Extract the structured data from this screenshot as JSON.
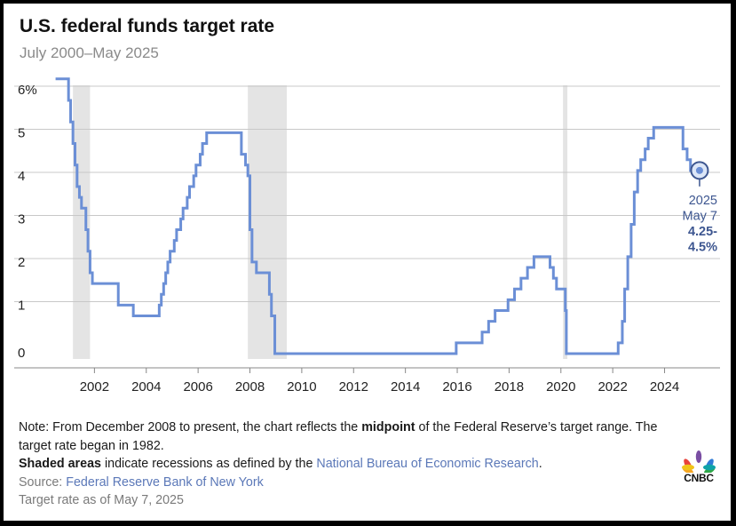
{
  "title": "U.S. federal funds target rate",
  "subtitle": "July 2000–May 2025",
  "colors": {
    "line": "#6b8fd6",
    "recession": "#e4e4e4",
    "grid": "#c8c8c8",
    "annotation_text": "#3d5690"
  },
  "chart_data": {
    "type": "line",
    "title": "U.S. federal funds target rate",
    "subtitle": "July 2000–May 2025",
    "xlabel": "",
    "ylabel": "",
    "xlim": [
      2000.0,
      2025.9
    ],
    "ylim": [
      0,
      6.5
    ],
    "y_ticks": [
      "6%",
      "5",
      "4",
      "3",
      "2",
      "1",
      "0"
    ],
    "y_tick_values": [
      6,
      5,
      4,
      3,
      2,
      1,
      0
    ],
    "x_ticks": [
      "2002",
      "2004",
      "2006",
      "2008",
      "2010",
      "2012",
      "2014",
      "2016",
      "2018",
      "2020",
      "2022",
      "2024"
    ],
    "x_tick_values": [
      2002,
      2004,
      2006,
      2008,
      2010,
      2012,
      2014,
      2016,
      2018,
      2020,
      2022,
      2024
    ],
    "grid": "horizontal",
    "recessions": [
      [
        2001.17,
        2001.83
      ],
      [
        2007.92,
        2009.42
      ],
      [
        2020.08,
        2020.25
      ]
    ],
    "series": [
      {
        "x": [
          2000.5,
          2001.0,
          2001.08,
          2001.17,
          2001.25,
          2001.33,
          2001.42,
          2001.5,
          2001.67,
          2001.75,
          2001.83,
          2001.92,
          2002.0,
          2002.92,
          2003.5,
          2004.5,
          2004.58,
          2004.67,
          2004.75,
          2004.83,
          2004.92,
          2005.08,
          2005.17,
          2005.33,
          2005.42,
          2005.58,
          2005.67,
          2005.83,
          2005.92,
          2006.08,
          2006.17,
          2006.33,
          2006.5,
          2007.67,
          2007.83,
          2007.92,
          2008.0,
          2008.08,
          2008.25,
          2008.33,
          2008.75,
          2008.83,
          2008.96,
          2015.96,
          2016.96,
          2017.21,
          2017.46,
          2017.96,
          2018.21,
          2018.46,
          2018.71,
          2018.96,
          2019.58,
          2019.71,
          2019.83,
          2020.17,
          2020.21,
          2022.21,
          2022.37,
          2022.46,
          2022.58,
          2022.71,
          2022.83,
          2022.96,
          2023.08,
          2023.25,
          2023.37,
          2023.58,
          2024.71,
          2024.87,
          2025.0,
          2025.35
        ],
        "values": [
          6.5,
          6.0,
          5.5,
          5.0,
          4.5,
          4.0,
          3.75,
          3.5,
          3.0,
          2.5,
          2.0,
          1.75,
          1.75,
          1.25,
          1.0,
          1.25,
          1.5,
          1.75,
          2.0,
          2.25,
          2.5,
          2.75,
          3.0,
          3.25,
          3.5,
          3.75,
          4.0,
          4.25,
          4.5,
          4.75,
          5.0,
          5.25,
          5.25,
          4.75,
          4.5,
          4.25,
          3.0,
          2.25,
          2.0,
          2.0,
          1.5,
          1.0,
          0.125,
          0.375,
          0.625,
          0.875,
          1.125,
          1.375,
          1.625,
          1.875,
          2.125,
          2.375,
          2.125,
          1.875,
          1.625,
          1.125,
          0.125,
          0.375,
          0.875,
          1.625,
          2.375,
          3.125,
          3.875,
          4.375,
          4.625,
          4.875,
          5.125,
          5.375,
          4.875,
          4.625,
          4.375,
          4.375
        ]
      }
    ],
    "annotation": {
      "x": 2025.35,
      "y": 4.375,
      "label_lines": [
        "2025",
        "May 7",
        "4.25-",
        "4.5%"
      ]
    }
  },
  "notes": {
    "line1_part1": "Note: From December 2008 to present, the chart reflects the ",
    "line1_bold": "midpoint",
    "line1_part2": " of the Federal Reserve’s target range. The target rate began in 1982.",
    "line2_bold": "Shaded areas",
    "line2_part1": " indicate recessions as defined by the ",
    "line2_link": "National Bureau of Economic Research",
    "line2_end": ".",
    "source_label": "Source: ",
    "source_link": "Federal Reserve Bank of New York",
    "asof": "Target rate as of May 7, 2025"
  },
  "logo": {
    "text": "CNBC"
  }
}
